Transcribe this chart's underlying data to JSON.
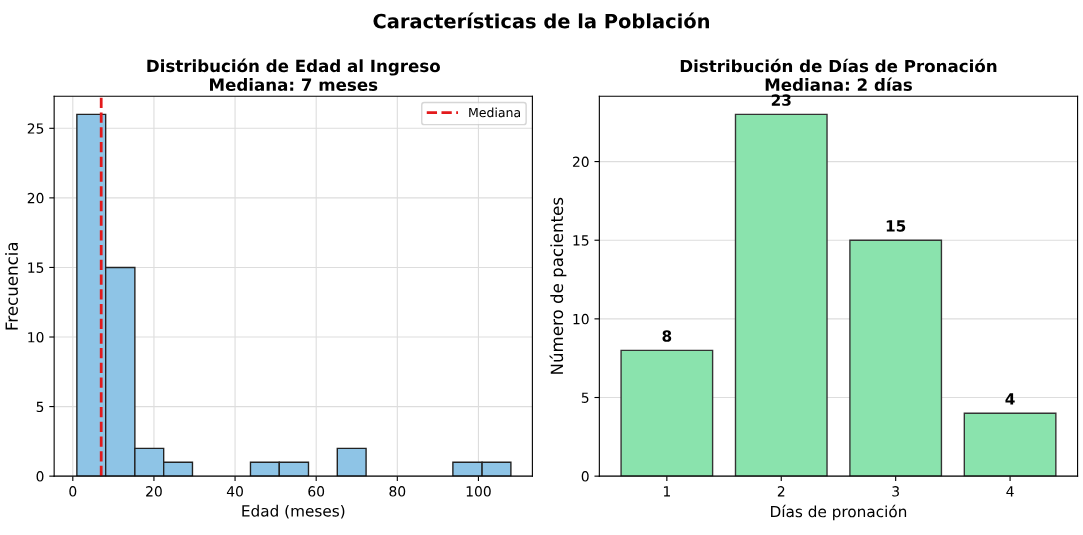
{
  "chart_data": [
    {
      "type": "histogram",
      "title": "Distribución de Edad al Ingreso\nMediana: 7 meses",
      "xlabel": "Edad (meses)",
      "ylabel": "Frecuencia",
      "annotations": [
        "Características de la Población"
      ],
      "bins": [
        1,
        8.1,
        15.3,
        22.4,
        29.5,
        36.7,
        43.8,
        50.9,
        58.1,
        65.2,
        72.3,
        79.5,
        86.6,
        93.7,
        100.9,
        108
      ],
      "values": [
        26,
        15,
        2,
        1,
        0,
        0,
        1,
        1,
        0,
        2,
        0,
        0,
        0,
        1,
        1
      ],
      "color": "#8ec4e6",
      "xlim": [
        -4.6,
        113.3
      ],
      "xticks": [
        0,
        20,
        40,
        60,
        80,
        100
      ],
      "ylim": [
        0,
        27.3
      ],
      "yticks": [
        0,
        5,
        10,
        15,
        20,
        25
      ],
      "series": [
        {
          "type": "line",
          "name": "Mediana",
          "x": [
            7,
            7
          ],
          "values": [
            0,
            27.3
          ],
          "color": "#e31a1c",
          "line_style": "dashed"
        }
      ],
      "grid": true,
      "legend": "top right"
    },
    {
      "type": "bar",
      "title": "Distribución de Días de Pronación\nMediana: 2 días",
      "xlabel": "Días de pronación",
      "ylabel": "Número de pacientes",
      "categories": [
        "1",
        "2",
        "3",
        "4"
      ],
      "values": [
        8,
        23,
        15,
        4
      ],
      "color": "#8ae3ad",
      "ylim": [
        0,
        24.15
      ],
      "yticks": [
        0,
        5,
        10,
        15,
        20
      ],
      "grid": "y",
      "data_labels": true
    }
  ]
}
